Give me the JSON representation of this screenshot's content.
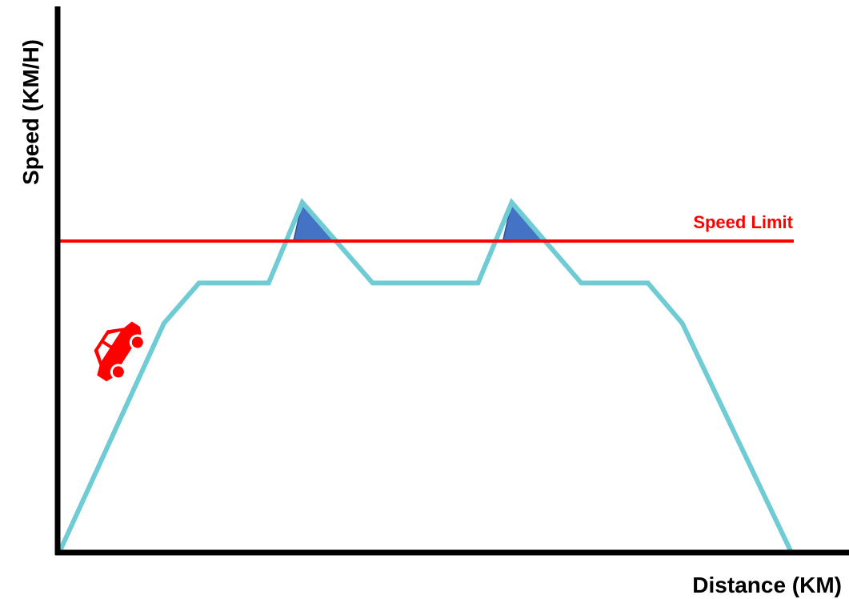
{
  "chart_data": {
    "type": "line",
    "xlabel": "Distance (KM)",
    "ylabel": "Speed (KM/H)",
    "xlim": [
      0,
      10
    ],
    "ylim": [
      0,
      100
    ],
    "grid": false,
    "series": [
      {
        "x": [
          0,
          1.43,
          1.91,
          2.86,
          3.32,
          4.28,
          5.72,
          6.18,
          7.13,
          8.04,
          8.51,
          10
        ],
        "y": [
          0,
          42.1,
          49.5,
          49.5,
          64.3,
          49.5,
          49.5,
          64.3,
          49.5,
          49.5,
          42.1,
          0
        ],
        "color": "#70ccd4"
      }
    ],
    "reference_lines": [
      {
        "label": "Speed Limit",
        "y": 57.2,
        "color": "#ff0000"
      }
    ],
    "highlighted_regions": [
      {
        "x": [
          3.2,
          3.32,
          3.78
        ],
        "y": [
          57.2,
          64.3,
          57.2
        ],
        "color": "#4472c4"
      },
      {
        "x": [
          6.06,
          6.18,
          6.64
        ],
        "y": [
          57.2,
          64.3,
          57.2
        ],
        "color": "#4472c4"
      }
    ],
    "car_icon": {
      "name": "car-icon",
      "color": "#ff0000"
    }
  }
}
